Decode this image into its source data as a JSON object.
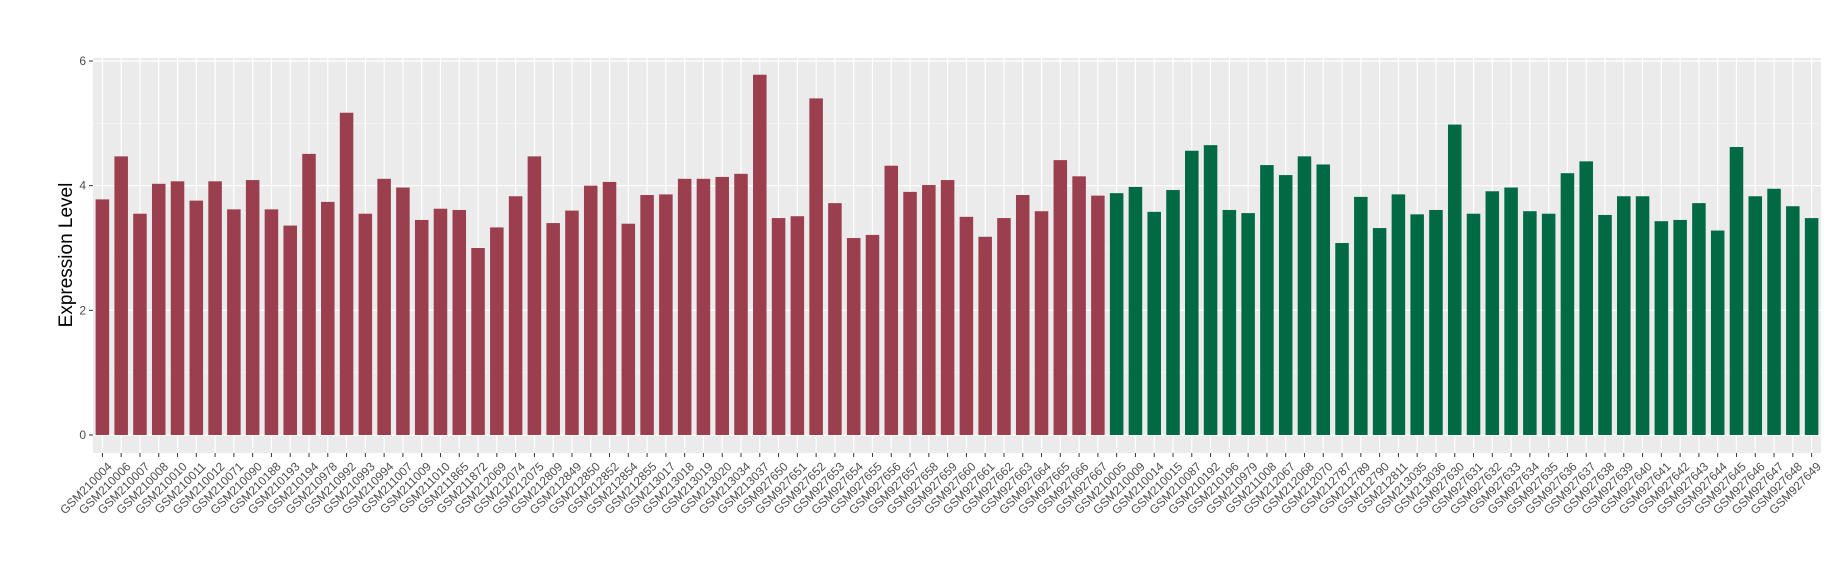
{
  "chart_data": {
    "type": "bar",
    "title": "",
    "xlabel": "",
    "ylabel": "Expression Level",
    "ylim": [
      0,
      6.2
    ],
    "yticks": [
      0,
      2,
      4,
      6
    ],
    "grid": true,
    "background": "#ebebeb",
    "series": [
      {
        "color": "#9b3f4e",
        "categories": [
          "GSM210004",
          "GSM210006",
          "GSM210007",
          "GSM210008",
          "GSM210010",
          "GSM210011",
          "GSM210012",
          "GSM210071",
          "GSM210090",
          "GSM210188",
          "GSM210193",
          "GSM210194",
          "GSM210978",
          "GSM210992",
          "GSM210993",
          "GSM210994",
          "GSM211007",
          "GSM211009",
          "GSM211010",
          "GSM211865",
          "GSM211872",
          "GSM212069",
          "GSM212074",
          "GSM212075",
          "GSM212809",
          "GSM212849",
          "GSM212850",
          "GSM212852",
          "GSM212854",
          "GSM212855",
          "GSM213017",
          "GSM213018",
          "GSM213019",
          "GSM213020",
          "GSM213034",
          "GSM213037",
          "GSM927650",
          "GSM927651",
          "GSM927652",
          "GSM927653",
          "GSM927654",
          "GSM927655",
          "GSM927656",
          "GSM927657",
          "GSM927658",
          "GSM927659",
          "GSM927660",
          "GSM927661",
          "GSM927662",
          "GSM927663",
          "GSM927664",
          "GSM927665",
          "GSM927666",
          "GSM927667"
        ],
        "values": [
          3.78,
          4.47,
          3.55,
          4.03,
          4.07,
          3.76,
          4.07,
          3.62,
          4.09,
          3.62,
          3.36,
          4.51,
          3.74,
          5.17,
          3.55,
          4.11,
          3.97,
          3.45,
          3.63,
          3.61,
          3.0,
          3.33,
          3.83,
          4.47,
          3.4,
          3.6,
          4.0,
          4.06,
          3.39,
          3.85,
          3.86,
          4.11,
          4.11,
          4.14,
          4.19,
          5.78,
          3.48,
          3.51,
          5.4,
          3.72,
          3.16,
          3.21,
          4.32,
          3.9,
          4.01,
          4.09,
          3.5,
          3.18,
          3.48,
          3.85,
          3.59,
          4.41,
          4.15,
          3.84
        ]
      },
      {
        "color": "#006a45",
        "categories": [
          "GSM210005",
          "GSM210009",
          "GSM210014",
          "GSM210015",
          "GSM210087",
          "GSM210192",
          "GSM210196",
          "GSM210979",
          "GSM211008",
          "GSM212067",
          "GSM212068",
          "GSM212070",
          "GSM212787",
          "GSM212789",
          "GSM212790",
          "GSM212811",
          "GSM213035",
          "GSM213036",
          "GSM927630",
          "GSM927631",
          "GSM927632",
          "GSM927633",
          "GSM927634",
          "GSM927635",
          "GSM927636",
          "GSM927637",
          "GSM927638",
          "GSM927639",
          "GSM927640",
          "GSM927641",
          "GSM927642",
          "GSM927643",
          "GSM927644",
          "GSM927645",
          "GSM927646",
          "GSM927647",
          "GSM927648",
          "GSM927649"
        ],
        "values": [
          3.88,
          3.98,
          3.58,
          3.93,
          4.56,
          4.65,
          3.61,
          3.56,
          4.33,
          4.17,
          4.47,
          4.34,
          3.08,
          3.82,
          3.32,
          3.86,
          3.54,
          3.61,
          4.98,
          3.55,
          3.91,
          3.97,
          3.59,
          3.55,
          4.2,
          4.39,
          3.53,
          3.83,
          3.83,
          3.43,
          3.45,
          3.72,
          3.28,
          4.62,
          3.83,
          3.95,
          3.67,
          3.48
        ]
      }
    ]
  }
}
